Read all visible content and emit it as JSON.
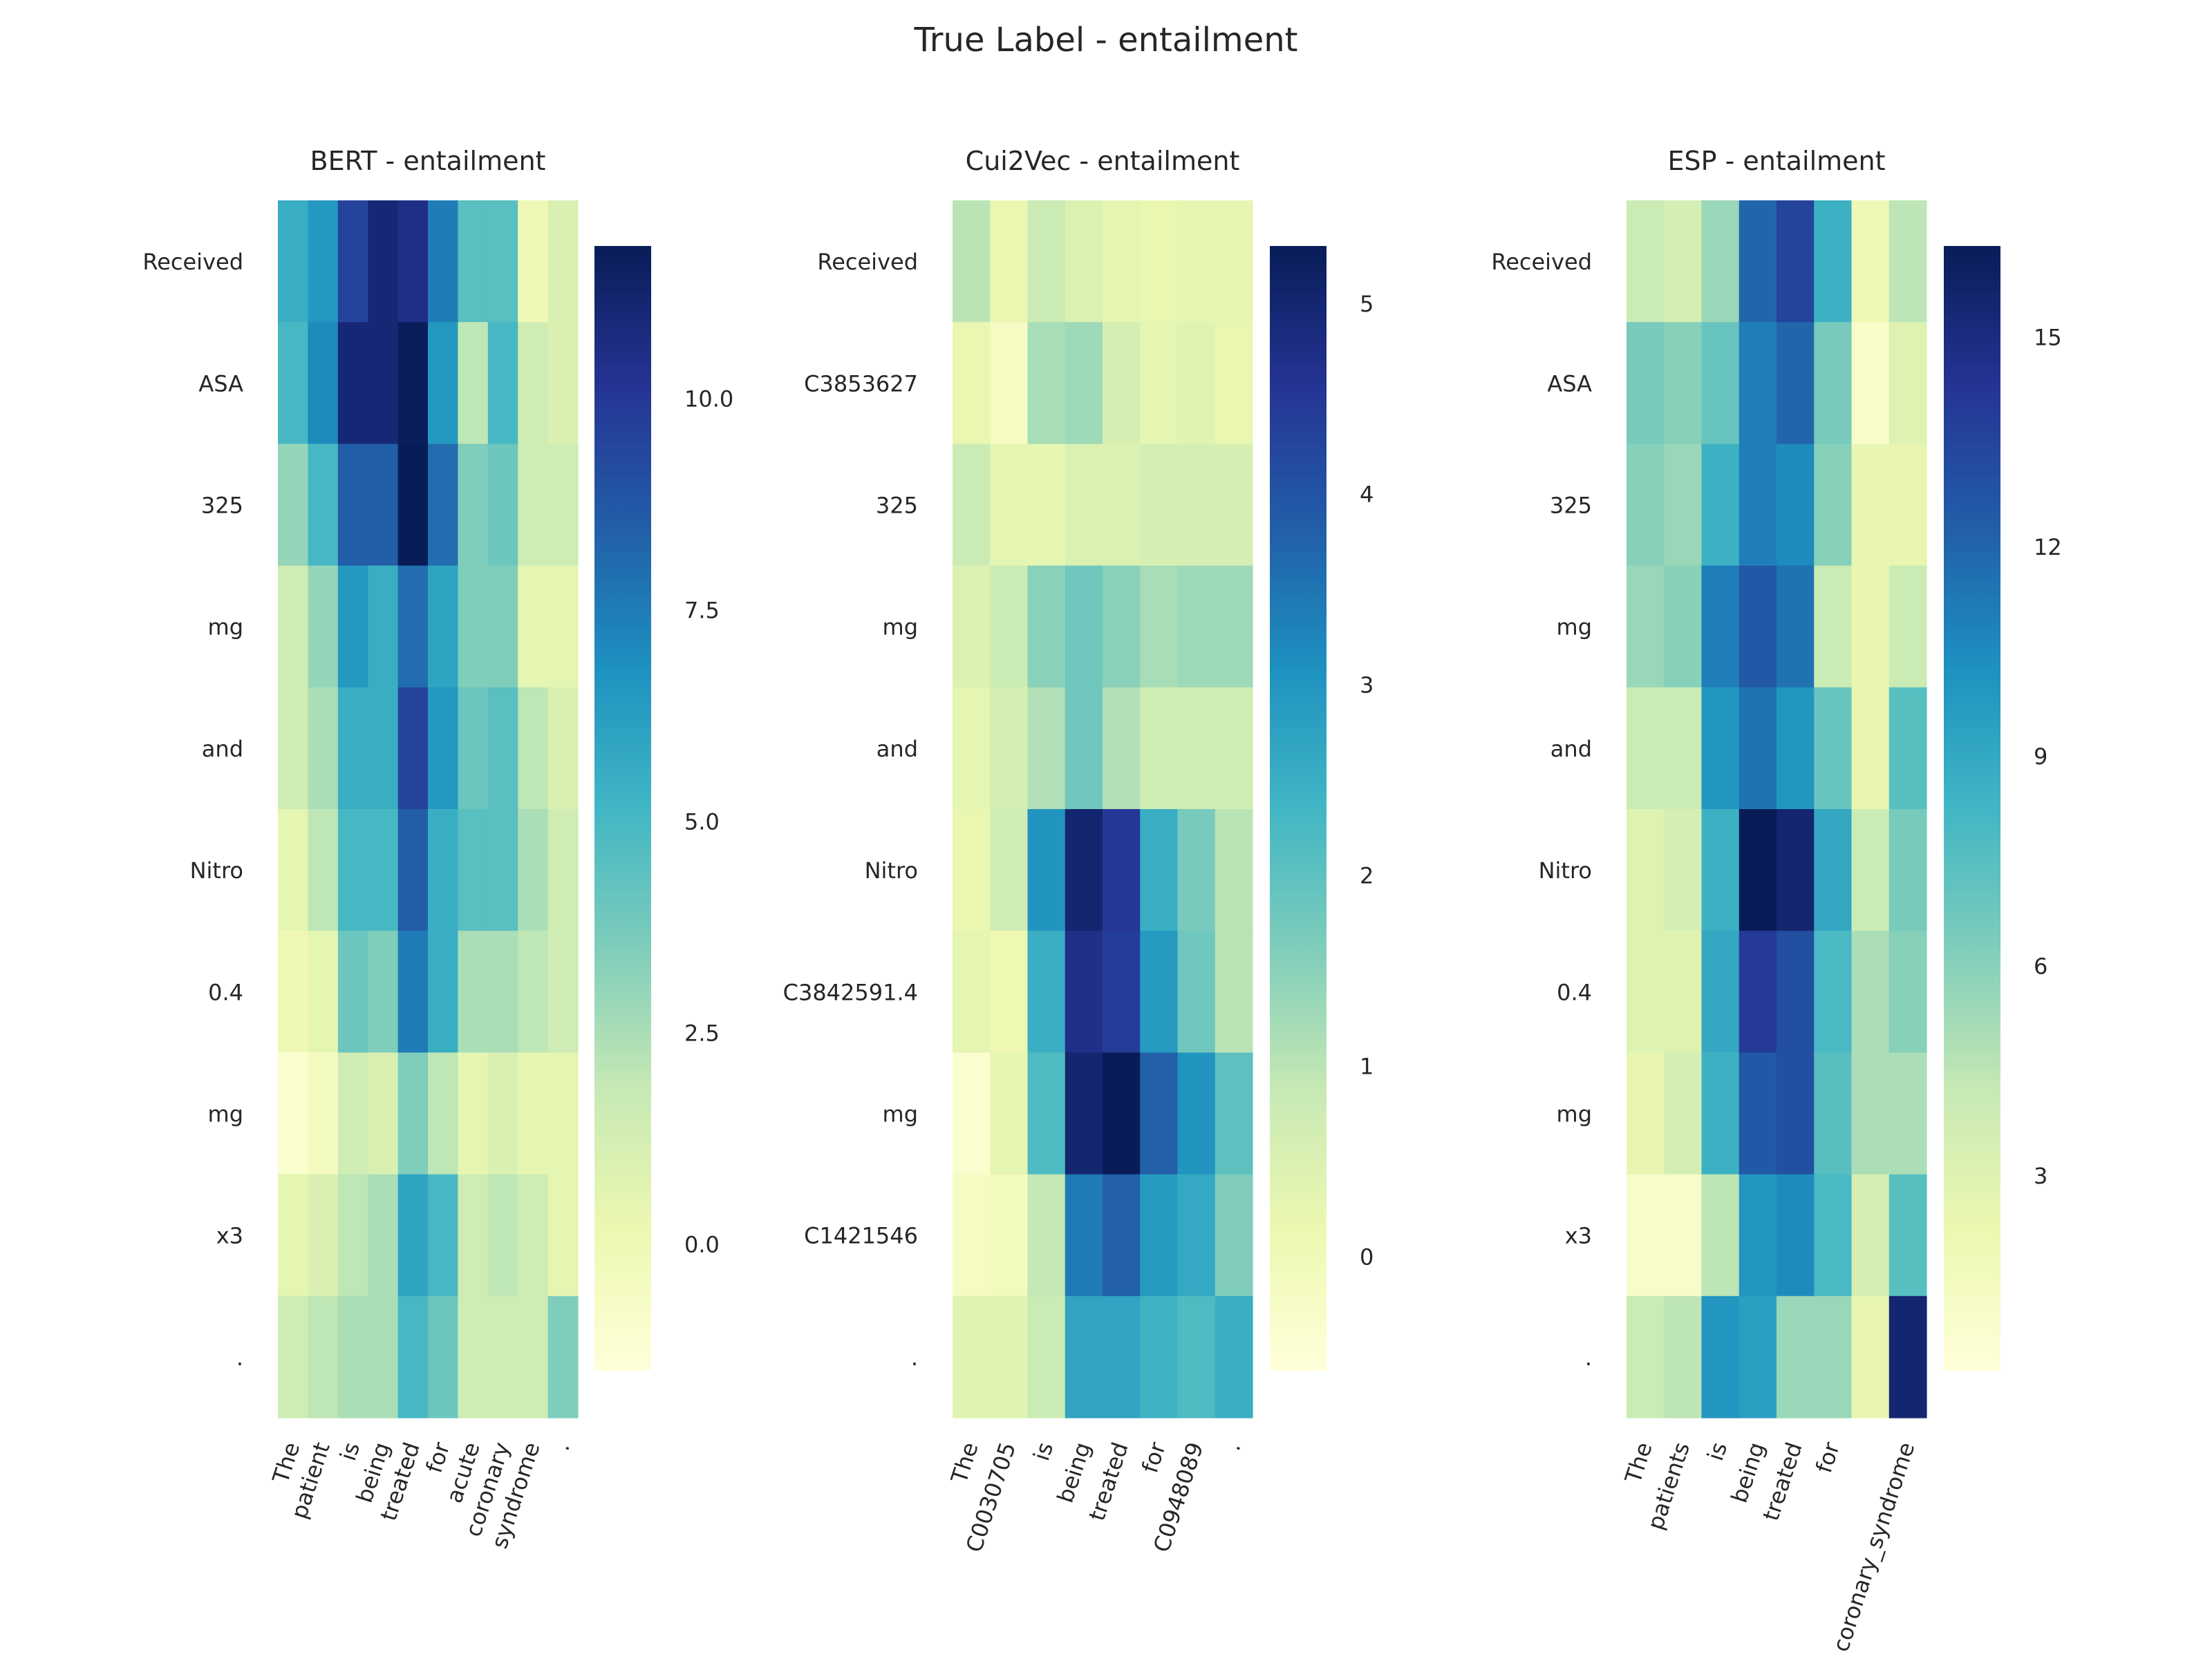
{
  "suptitle": "True Label - entailment",
  "colormap": {
    "name": "YlGnBu",
    "stops": [
      "#ffffd9",
      "#edf8b1",
      "#c7e9b4",
      "#7fcdbb",
      "#41b6c4",
      "#1d91c0",
      "#225ea8",
      "#253494",
      "#081d58"
    ]
  },
  "chart_data": [
    {
      "type": "heatmap",
      "title": "BERT - entailment",
      "rows": [
        "Received",
        "ASA",
        "325",
        "mg",
        "and",
        "Nitro",
        "0.4",
        "mg",
        "x3",
        "."
      ],
      "cols": [
        "The",
        "patient",
        "is",
        "being",
        "treated",
        "for",
        "acute",
        "coronary",
        "syndrome",
        "."
      ],
      "vmin": -1.5,
      "vmax": 11.8,
      "colorbar_ticks": [
        "0.0",
        "2.5",
        "5.0",
        "7.5",
        "10.0"
      ],
      "colorbar_tick_values": [
        0,
        2.5,
        5,
        7.5,
        10
      ],
      "values": [
        [
          5.5,
          6.5,
          9.5,
          11.0,
          10.5,
          7.5,
          4.5,
          4.5,
          0.0,
          1.0
        ],
        [
          5.0,
          7.0,
          11.0,
          11.0,
          11.7,
          6.5,
          2.0,
          5.0,
          1.5,
          1.0
        ],
        [
          3.0,
          5.0,
          8.5,
          8.5,
          11.8,
          8.0,
          3.5,
          4.0,
          1.5,
          1.5
        ],
        [
          1.5,
          3.0,
          6.5,
          5.5,
          8.0,
          6.0,
          3.5,
          3.5,
          0.5,
          0.5
        ],
        [
          1.5,
          2.5,
          5.5,
          5.5,
          9.5,
          6.5,
          4.0,
          4.5,
          2.0,
          1.0
        ],
        [
          0.5,
          2.0,
          5.0,
          5.0,
          8.5,
          5.5,
          4.5,
          4.5,
          2.5,
          1.5
        ],
        [
          0.0,
          0.5,
          4.0,
          3.5,
          7.5,
          5.5,
          2.5,
          2.5,
          2.0,
          1.5
        ],
        [
          -1.0,
          -0.5,
          1.5,
          1.0,
          3.5,
          2.0,
          0.5,
          1.0,
          0.5,
          0.5
        ],
        [
          0.5,
          1.0,
          2.0,
          2.5,
          6.0,
          5.0,
          1.5,
          2.0,
          1.5,
          0.5
        ],
        [
          1.5,
          2.0,
          2.5,
          2.5,
          5.0,
          4.0,
          1.5,
          1.5,
          1.5,
          3.5
        ]
      ]
    },
    {
      "type": "heatmap",
      "title": "Cui2Vec - entailment",
      "rows": [
        "Received",
        "C3853627",
        "325",
        "mg",
        "and",
        "Nitro",
        "C3842591.4",
        "mg",
        "C1421546",
        "."
      ],
      "cols": [
        "The",
        "C0030705",
        "is",
        "being",
        "treated",
        "for",
        "C0948089",
        "."
      ],
      "vmin": -0.6,
      "vmax": 5.3,
      "colorbar_ticks": [
        "0",
        "1",
        "2",
        "3",
        "4",
        "5"
      ],
      "colorbar_tick_values": [
        0,
        1,
        2,
        3,
        4,
        5
      ],
      "values": [
        [
          1.0,
          0.2,
          0.8,
          0.5,
          0.3,
          0.2,
          0.3,
          0.3
        ],
        [
          0.2,
          -0.2,
          1.2,
          1.3,
          0.6,
          0.3,
          0.4,
          0.2
        ],
        [
          0.8,
          0.3,
          0.3,
          0.5,
          0.5,
          0.6,
          0.6,
          0.6
        ],
        [
          0.5,
          0.8,
          1.5,
          1.8,
          1.5,
          1.2,
          1.3,
          1.3
        ],
        [
          0.3,
          0.6,
          1.1,
          1.8,
          1.1,
          0.7,
          0.7,
          0.7
        ],
        [
          0.2,
          0.7,
          3.0,
          5.0,
          4.5,
          2.5,
          1.7,
          1.0
        ],
        [
          0.3,
          0.1,
          2.5,
          4.7,
          4.4,
          2.9,
          1.8,
          1.0
        ],
        [
          -0.4,
          0.3,
          2.2,
          5.0,
          5.3,
          3.8,
          3.0,
          2.0
        ],
        [
          -0.2,
          -0.1,
          0.9,
          3.4,
          3.8,
          2.9,
          2.6,
          1.6
        ],
        [
          0.4,
          0.4,
          0.8,
          2.7,
          2.7,
          2.4,
          2.2,
          2.5
        ]
      ]
    },
    {
      "type": "heatmap",
      "title": "ESP - entailment",
      "rows": [
        "Received",
        "ASA",
        "325",
        "mg",
        "and",
        "Nitro",
        "0.4",
        "mg",
        "x3",
        "."
      ],
      "cols": [
        "The",
        "patients",
        "is",
        "being",
        "treated",
        "for",
        "",
        "coronary_syndrome"
      ],
      "vmin": 0.2,
      "vmax": 16.3,
      "colorbar_ticks": [
        "3",
        "6",
        "9",
        "12",
        "15"
      ],
      "colorbar_tick_values": [
        3,
        6,
        9,
        12,
        15
      ],
      "values": [
        [
          4.0,
          3.5,
          5.5,
          12.0,
          13.5,
          8.5,
          2.0,
          4.5
        ],
        [
          6.5,
          6.0,
          7.0,
          11.0,
          12.0,
          6.5,
          1.0,
          3.0
        ],
        [
          6.0,
          5.5,
          8.5,
          11.0,
          10.5,
          6.0,
          2.5,
          2.5
        ],
        [
          5.5,
          6.0,
          11.0,
          12.5,
          11.5,
          4.0,
          2.5,
          4.0
        ],
        [
          4.0,
          4.0,
          10.0,
          11.5,
          10.0,
          7.0,
          2.5,
          7.5
        ],
        [
          3.0,
          3.5,
          8.5,
          16.3,
          15.5,
          9.0,
          4.0,
          6.5
        ],
        [
          3.0,
          3.0,
          9.0,
          14.0,
          13.0,
          8.0,
          5.0,
          6.0
        ],
        [
          2.5,
          3.5,
          8.5,
          12.5,
          13.0,
          7.5,
          5.0,
          5.0
        ],
        [
          1.0,
          1.0,
          4.5,
          10.0,
          10.5,
          8.0,
          3.5,
          7.5
        ],
        [
          4.0,
          4.5,
          10.0,
          9.5,
          5.5,
          5.5,
          2.5,
          15.5
        ]
      ]
    }
  ]
}
